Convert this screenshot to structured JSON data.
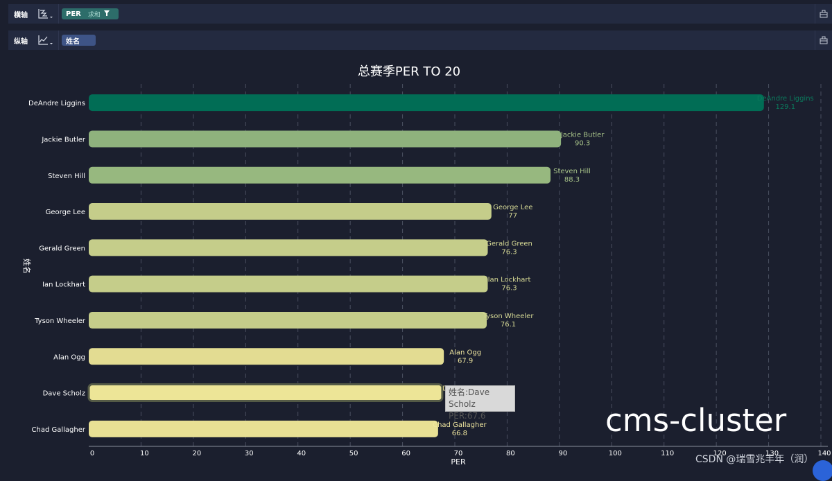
{
  "shelves": {
    "x": {
      "label": "横轴",
      "pill": {
        "field": "PER",
        "aggregation": "求和",
        "filter_icon": "filter-icon"
      },
      "chart_type_icon": "bar-chart-type-icon"
    },
    "y": {
      "label": "纵轴",
      "pill": {
        "field": "姓名"
      },
      "chart_type_icon": "line-chart-type-icon"
    },
    "end_icon": "layout-icon"
  },
  "colors": {
    "background": "#1b1f2e",
    "shelf_bg": "#232a40",
    "pill_x": "#2d6d6a",
    "pill_y": "#3e5486",
    "grid": "#4a4f60",
    "bar_gradient": [
      "#016d55",
      "#8fb27d",
      "#c5cd8a",
      "#ede597"
    ]
  },
  "tooltip": {
    "line1": "姓名:Dave Scholz",
    "line2": "PER:67.6"
  },
  "watermark": "cms-cluster",
  "credit": "CSDN @瑞雪兆丰年（润）",
  "chart_data": {
    "type": "bar",
    "orientation": "horizontal",
    "title": "总赛季PER TO 20",
    "xlabel": "PER",
    "ylabel": "姓名",
    "xlim": [
      0,
      140
    ],
    "xticks": [
      0,
      10,
      20,
      30,
      40,
      50,
      60,
      70,
      80,
      90,
      100,
      110,
      120,
      130,
      140
    ],
    "grid": "vertical dashed",
    "categories": [
      "DeAndre Liggins",
      "Jackie Butler",
      "Steven Hill",
      "George Lee",
      "Gerald Green",
      "Ian Lockhart",
      "Tyson Wheeler",
      "Alan Ogg",
      "Dave Scholz",
      "Chad Gallagher"
    ],
    "values": [
      129.1,
      90.3,
      88.3,
      77,
      76.3,
      76.3,
      76.1,
      67.9,
      67.6,
      66.8
    ],
    "bar_colors": [
      "#016d55",
      "#8fb27d",
      "#97b87f",
      "#c5cd8a",
      "#c5cd8a",
      "#c5cd8a",
      "#c5cd8a",
      "#e3dc92",
      "#ede597",
      "#e8e094"
    ],
    "label_colors": [
      "#0b7a5d",
      "#a9c58a",
      "#a9c58a",
      "#d6d995",
      "#d6d995",
      "#d6d995",
      "#d6d995",
      "#f0e7a0",
      "#f0e7a0",
      "#f0e7a0"
    ],
    "highlighted": "Dave Scholz"
  }
}
